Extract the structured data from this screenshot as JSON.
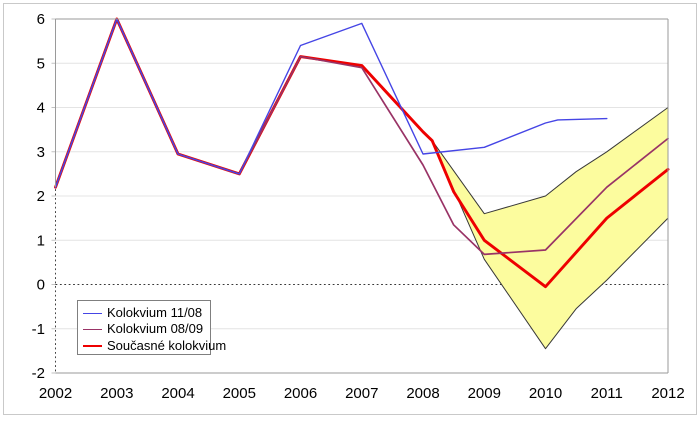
{
  "chart_data": {
    "type": "line",
    "title": "",
    "xlabel": "",
    "ylabel": "",
    "xlim": [
      2002,
      2012
    ],
    "ylim": [
      -2,
      6
    ],
    "x_ticks": [
      2002,
      2003,
      2004,
      2005,
      2006,
      2007,
      2008,
      2009,
      2010,
      2011,
      2012
    ],
    "y_ticks": [
      6,
      5,
      4,
      3,
      2,
      1,
      0,
      -1,
      -2
    ],
    "grid": "horizontal-light",
    "zero_line": "dotted-black",
    "legend_position": "bottom-left-inside",
    "series": [
      {
        "name": "Kolokvium 11/08",
        "color": "#4545e5",
        "width": 1.4,
        "points": [
          [
            2002,
            2.2
          ],
          [
            2003,
            6.0
          ],
          [
            2004,
            2.95
          ],
          [
            2005,
            2.5
          ],
          [
            2006,
            5.4
          ],
          [
            2007,
            5.9
          ],
          [
            2008,
            2.95
          ],
          [
            2009,
            3.1
          ],
          [
            2010,
            3.65
          ],
          [
            2010.2,
            3.72
          ],
          [
            2011,
            3.75
          ]
        ]
      },
      {
        "name": "Kolokvium 08/09",
        "color": "#993366",
        "width": 1.7,
        "points": [
          [
            2002,
            2.2
          ],
          [
            2003,
            6.0
          ],
          [
            2004,
            2.95
          ],
          [
            2005,
            2.5
          ],
          [
            2006,
            5.15
          ],
          [
            2007,
            4.9
          ],
          [
            2008,
            2.7
          ],
          [
            2008.5,
            1.35
          ],
          [
            2009,
            0.68
          ],
          [
            2010,
            0.78
          ],
          [
            2011,
            2.2
          ],
          [
            2012,
            3.3
          ]
        ]
      },
      {
        "name": "Současné kolokvium",
        "color": "#ee0000",
        "width": 2.9,
        "points": [
          [
            2002,
            2.2
          ],
          [
            2003,
            6.0
          ],
          [
            2004,
            2.95
          ],
          [
            2005,
            2.5
          ],
          [
            2006,
            5.15
          ],
          [
            2007,
            4.95
          ],
          [
            2008,
            3.45
          ],
          [
            2008.15,
            3.25
          ],
          [
            2008.5,
            2.1
          ],
          [
            2009,
            1.0
          ],
          [
            2010,
            -0.05
          ],
          [
            2011,
            1.5
          ],
          [
            2012,
            2.6
          ]
        ]
      }
    ],
    "band": {
      "name": "uncertainty-fan",
      "fill": "#fcfc9e",
      "edge": "#383838",
      "upper": [
        [
          2008.15,
          3.25
        ],
        [
          2009,
          1.6
        ],
        [
          2010,
          2.0
        ],
        [
          2010.5,
          2.55
        ],
        [
          2011,
          3.0
        ],
        [
          2012,
          4.0
        ]
      ],
      "lower": [
        [
          2008.15,
          3.25
        ],
        [
          2009,
          0.57
        ],
        [
          2010,
          -1.45
        ],
        [
          2010.5,
          -0.55
        ],
        [
          2011,
          0.1
        ],
        [
          2012,
          1.5
        ]
      ]
    },
    "colors": {
      "grid": "#e4e4e4",
      "axis": "#9a9a9a",
      "tick": "#c2c2c2",
      "zero_line": "#383838",
      "axis_dotted": "#444444",
      "outer_border": "#c9c9c9",
      "background": "#ffffff",
      "text": "#000000"
    }
  }
}
